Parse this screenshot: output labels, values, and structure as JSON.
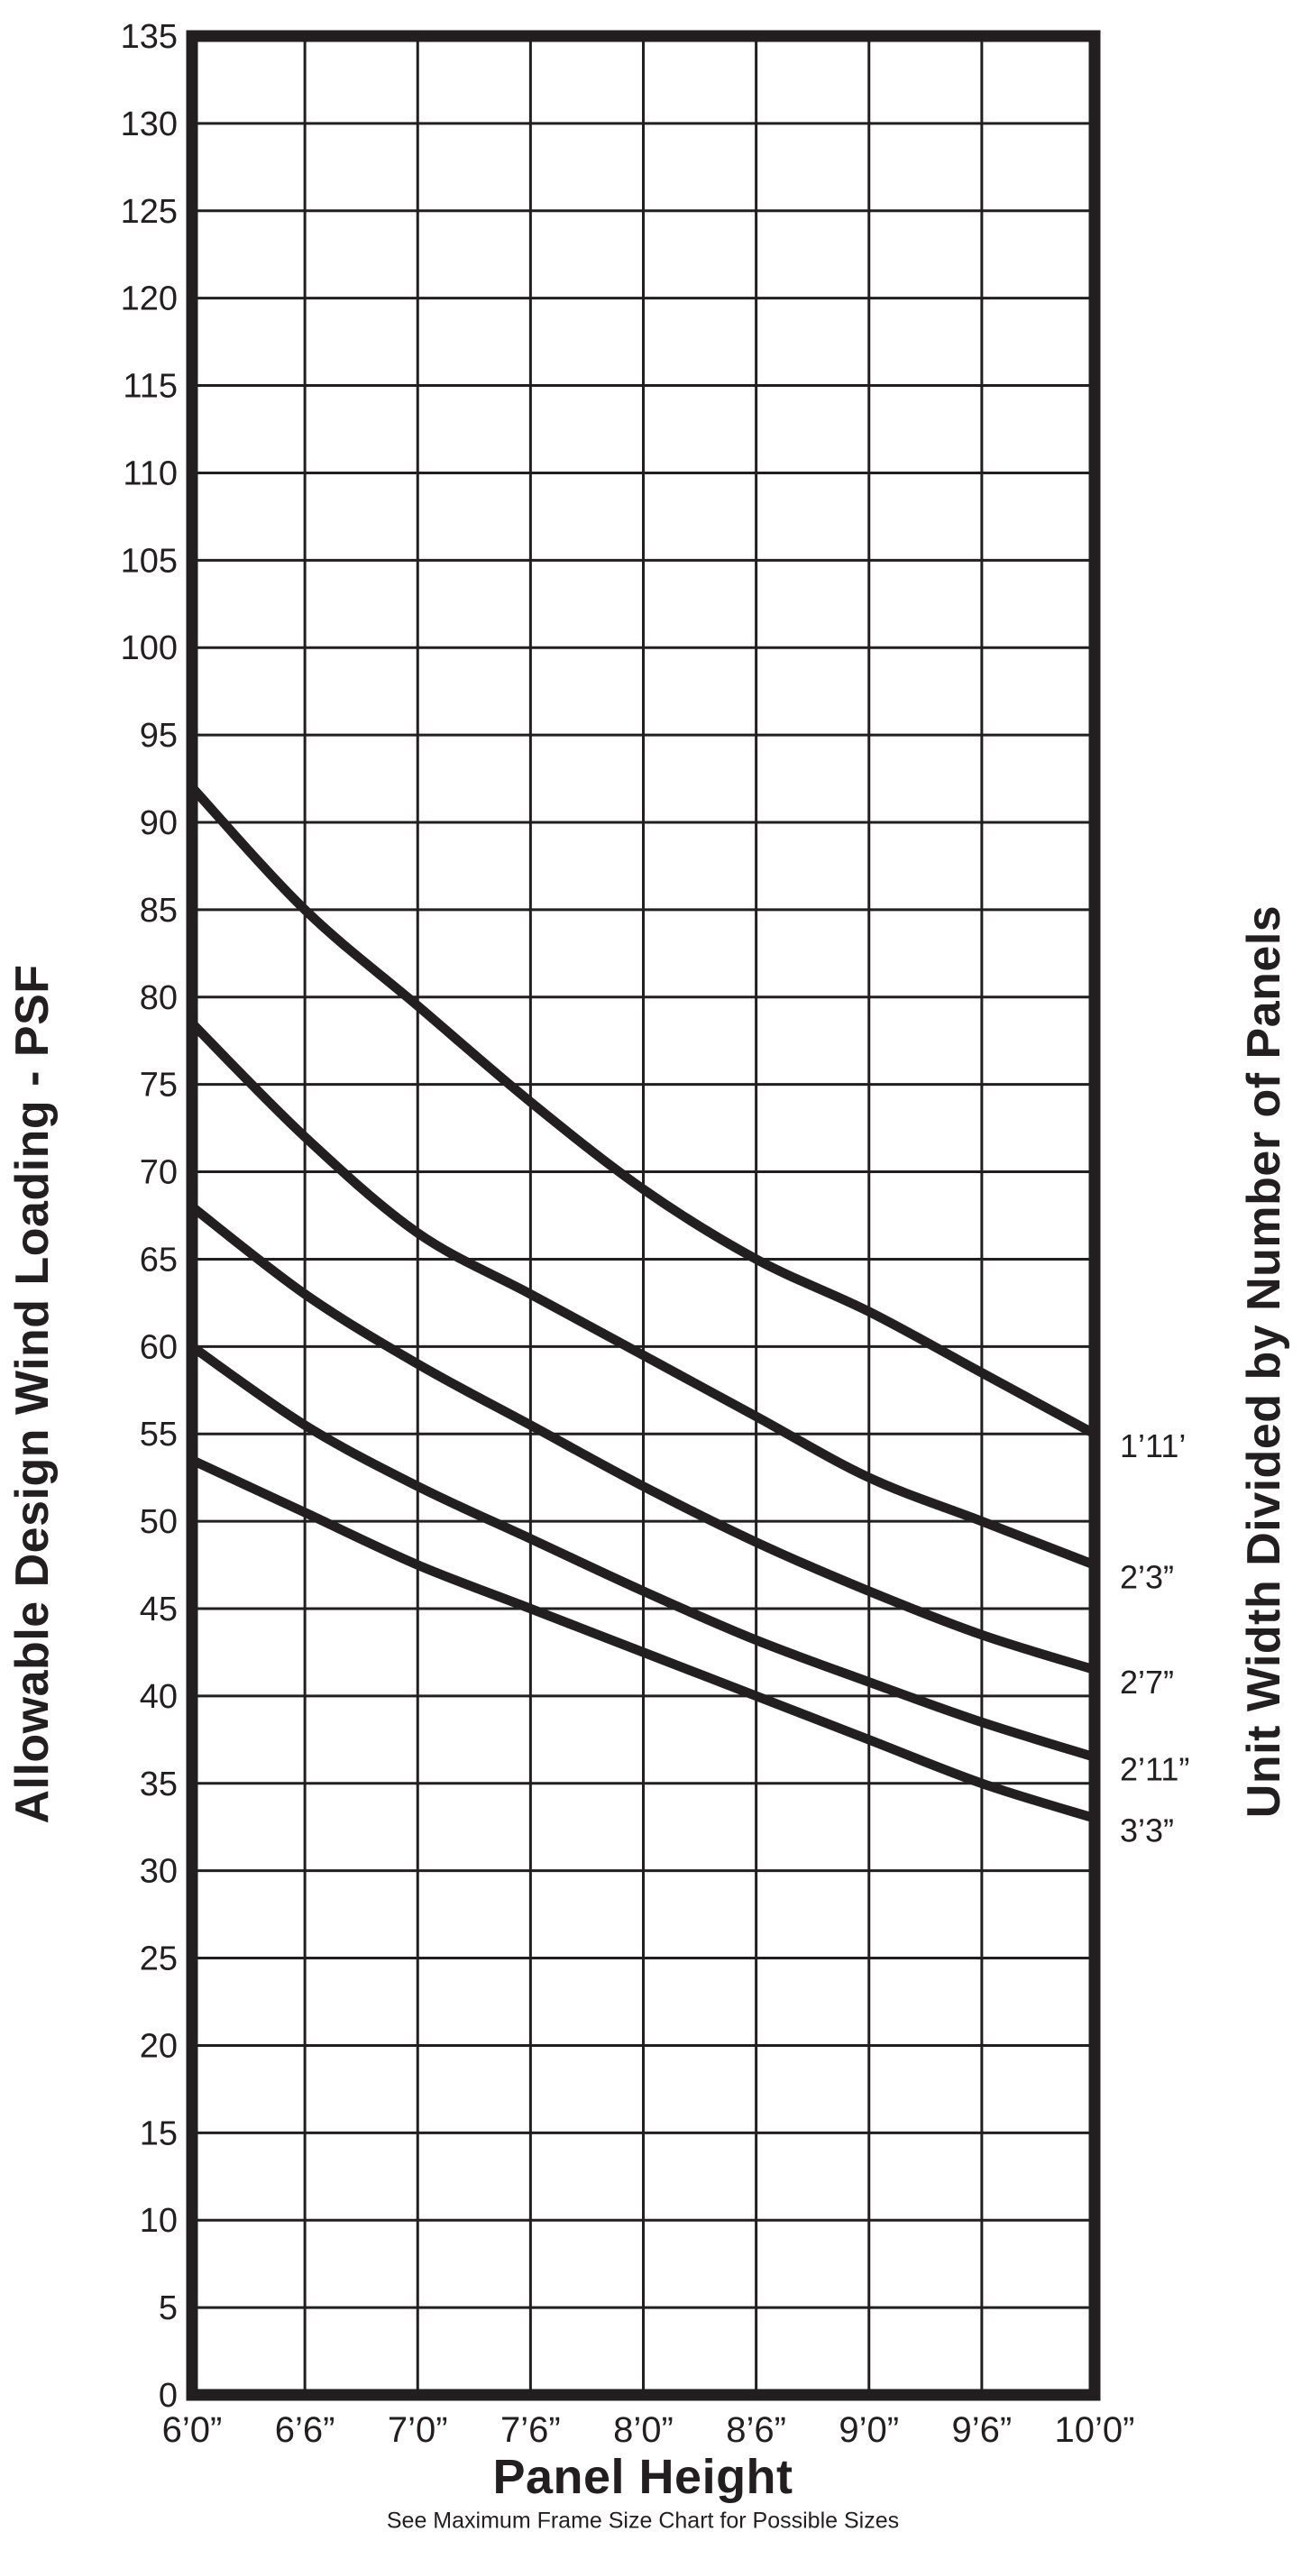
{
  "page": {
    "background": "#ffffff",
    "ink": "#231f20"
  },
  "chart_data": {
    "type": "line",
    "title": "",
    "x_axis": {
      "title": "Panel Height",
      "subtitle": "See Maximum Frame Size Chart for Possible Sizes",
      "ticks": [
        "6’0”",
        "6’6”",
        "7’0”",
        "7’6”",
        "8’0”",
        "8’6”",
        "9’0”",
        "9’6”",
        "10’0”"
      ]
    },
    "y_axis": {
      "title": "Allowable Design Wind Loading - PSF",
      "min": 0,
      "max": 135,
      "step": 5,
      "ticks": [
        135,
        130,
        125,
        120,
        115,
        110,
        105,
        100,
        95,
        90,
        85,
        80,
        75,
        70,
        65,
        60,
        55,
        50,
        45,
        40,
        35,
        30,
        25,
        20,
        15,
        10,
        5,
        0
      ]
    },
    "right_axis_title": "Unit Width Divided by Number of Panels",
    "legend_position": "right-of-curve-ends",
    "grid": true,
    "line_color": "#231f20",
    "series": [
      {
        "label": "1’11’",
        "values": [
          92,
          85,
          79.5,
          74,
          69,
          65,
          62,
          58.5,
          55
        ]
      },
      {
        "label": "2’3”",
        "values": [
          78.5,
          72,
          66.5,
          63,
          59.5,
          56,
          52.5,
          50,
          47.5
        ]
      },
      {
        "label": "2’7”",
        "values": [
          68,
          63,
          59,
          55.5,
          52,
          48.8,
          46,
          43.5,
          41.5
        ]
      },
      {
        "label": "2’11”",
        "values": [
          60,
          55.5,
          52,
          49,
          46,
          43.2,
          40.8,
          38.5,
          36.5
        ]
      },
      {
        "label": "3’3”",
        "values": [
          53.5,
          50.5,
          47.5,
          45,
          42.5,
          40,
          37.5,
          35,
          33
        ]
      }
    ]
  }
}
